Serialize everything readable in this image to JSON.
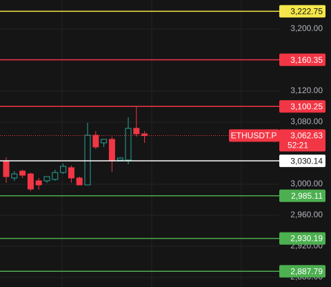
{
  "chart_data": {
    "type": "candlestick",
    "categories": [
      null,
      null,
      null,
      null,
      null,
      null,
      null,
      null,
      null,
      null,
      null,
      null,
      null,
      null,
      null,
      null,
      null,
      null
    ],
    "open": [
      3030.2,
      3008.0,
      3016.9,
      3013.3,
      3004.4,
      3004.4,
      3006.2,
      3015.1,
      3021.3,
      3008.0,
      2999.1,
      3063.1,
      3053.3,
      3057.8,
      3031.1,
      3031.1,
      3072.0,
      3064.9
    ],
    "high": [
      3034.7,
      3016.9,
      3018.7,
      3015.1,
      3008.0,
      3009.8,
      3018.7,
      3026.7,
      3024.0,
      3009.8,
      3079.1,
      3068.4,
      3057.8,
      3061.3,
      3034.7,
      3086.2,
      3099.6,
      3068.4
    ],
    "low": [
      3001.8,
      3004.4,
      3008.0,
      2991.1,
      2992.9,
      3001.8,
      3004.4,
      3013.3,
      3001.8,
      2999.1,
      2999.1,
      3045.3,
      3048.0,
      3016.0,
      3030.2,
      3025.8,
      3061.3,
      3053.3
    ],
    "close": [
      3009.8,
      3013.3,
      3011.6,
      2993.8,
      2999.1,
      3009.8,
      3015.1,
      3023.1,
      3008.0,
      2999.1,
      3063.1,
      3048.0,
      3057.8,
      3030.2,
      3033.8,
      3072.0,
      3064.9,
      3062.6
    ],
    "up_color": "#26a69a",
    "down_color": "#f23645",
    "ylim": [
      2867.6,
      3237.3
    ],
    "yticks": [
      {
        "value": 3200,
        "label": "3,200.00"
      },
      {
        "value": 3120,
        "label": "3,120.00"
      },
      {
        "value": 3080,
        "label": "3,080.00"
      },
      {
        "value": 3000,
        "label": "3,000.00"
      },
      {
        "value": 2960,
        "label": "2,960.00"
      },
      {
        "value": 2920,
        "label": "2,920.00"
      },
      {
        "value": 2880,
        "label": "2,880.00"
      }
    ],
    "grid": true,
    "price_lines": [
      {
        "value": 3222.75,
        "label": "3,222.75",
        "color": "#f5e74b",
        "text_color": "#131313"
      },
      {
        "value": 3160.35,
        "label": "3,160.35",
        "color": "#f23645",
        "text_color": "#ffffff"
      },
      {
        "value": 3100.25,
        "label": "3,100.25",
        "color": "#f23645",
        "text_color": "#ffffff"
      },
      {
        "value": 3030.14,
        "label": "3,030.14",
        "color": "#ffffff",
        "text_color": "#131313"
      },
      {
        "value": 2985.11,
        "label": "2,985.11",
        "color": "#4caf50",
        "text_color": "#ffffff"
      },
      {
        "value": 2930.19,
        "label": "2,930.19",
        "color": "#4caf50",
        "text_color": "#ffffff"
      },
      {
        "value": 2887.79,
        "label": "2,887.79",
        "color": "#4caf50",
        "text_color": "#ffffff"
      }
    ],
    "last_price": {
      "name": "ETHUSDT.P",
      "value": 3062.63,
      "label": "3,062.63",
      "countdown": "52:21",
      "color": "#f23645"
    }
  }
}
